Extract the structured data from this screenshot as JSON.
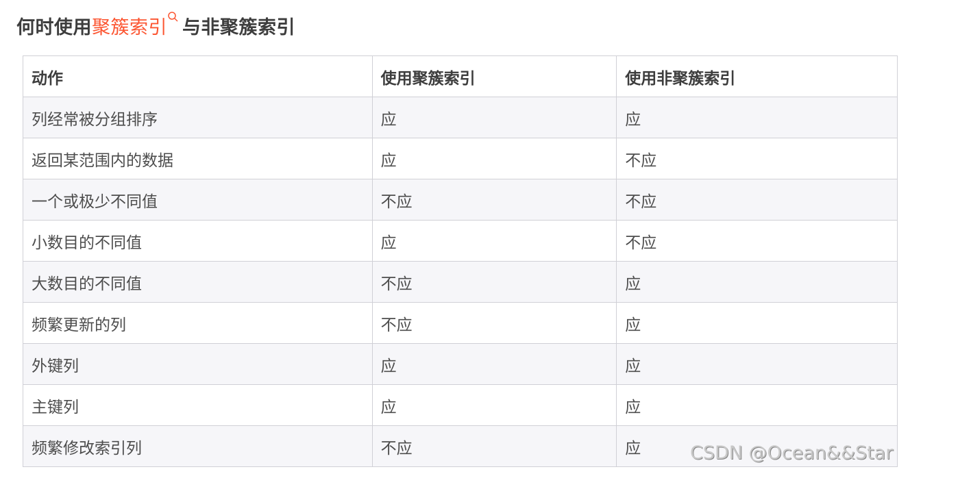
{
  "title": {
    "prefix": "何时使用",
    "link": "聚簇索引",
    "suffix": "与非聚簇索引",
    "link_icon": "search-icon",
    "link_color": "#fc5531"
  },
  "table": {
    "headers": [
      "动作",
      "使用聚簇索引",
      "使用非聚簇索引"
    ],
    "rows": [
      [
        "列经常被分组排序",
        "应",
        "应"
      ],
      [
        "返回某范围内的数据",
        "应",
        "不应"
      ],
      [
        "一个或极少不同值",
        "不应",
        "不应"
      ],
      [
        "小数目的不同值",
        "应",
        "不应"
      ],
      [
        "大数目的不同值",
        "不应",
        "应"
      ],
      [
        "频繁更新的列",
        "不应",
        "应"
      ],
      [
        "外键列",
        "应",
        "应"
      ],
      [
        "主键列",
        "应",
        "应"
      ],
      [
        "频繁修改索引列",
        "不应",
        "应"
      ]
    ]
  },
  "watermark": "CSDN @Ocean&&Star"
}
